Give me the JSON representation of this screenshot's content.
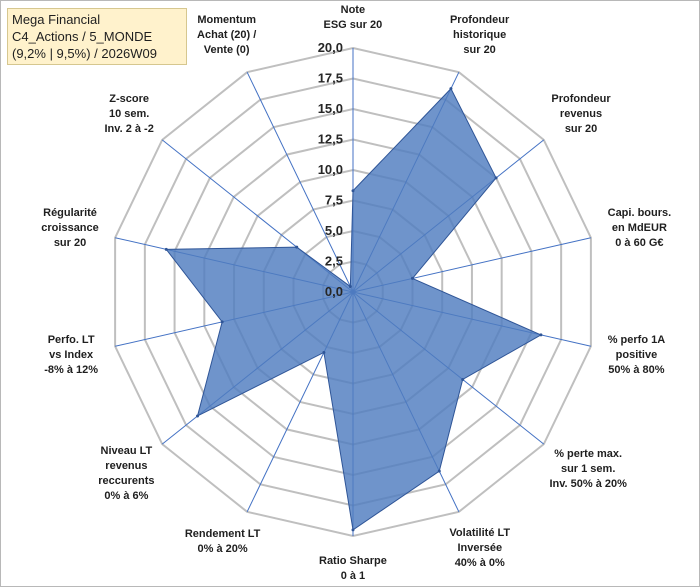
{
  "chart_data": {
    "type": "radar",
    "title_lines": [
      "Mega Financial",
      "C4_Actions / 5_MONDE",
      "(9,2% | 9,5%) / 2026W09"
    ],
    "rlim": [
      0,
      20
    ],
    "r_ticks": [
      "0,0",
      "2,5",
      "5,0",
      "7,5",
      "10,0",
      "12,5",
      "15,0",
      "17,5",
      "20,0"
    ],
    "grid": true,
    "axes": [
      {
        "lines": [
          "Note",
          "ESG sur 20"
        ],
        "value": 8.3
      },
      {
        "lines": [
          "Profondeur",
          "historique",
          "sur 20"
        ],
        "value": 18.5
      },
      {
        "lines": [
          "Profondeur",
          "revenus",
          "sur 20"
        ],
        "value": 15.0
      },
      {
        "lines": [
          "Capi. bours.",
          "en MdEUR",
          "0 à 60 G€"
        ],
        "value": 5.0
      },
      {
        "lines": [
          "% perfo 1A",
          "positive",
          "50% à 80%"
        ],
        "value": 15.8
      },
      {
        "lines": [
          "% perte max.",
          "sur 1 sem.",
          "Inv. 50% à 20%"
        ],
        "value": 11.5
      },
      {
        "lines": [
          "Volatilité LT",
          "Inversée",
          "40% à 0%"
        ],
        "value": 16.3
      },
      {
        "lines": [
          "Ratio Sharpe",
          "0 à 1"
        ],
        "value": 19.5
      },
      {
        "lines": [
          "Rendement LT",
          "0% à 20%"
        ],
        "value": 5.5
      },
      {
        "lines": [
          "Niveau LT",
          "revenus",
          "reccurents",
          "0% à 6%"
        ],
        "value": 16.3
      },
      {
        "lines": [
          "Perfo. LT",
          "vs Index",
          "-8% à 12%"
        ],
        "value": 11.0
      },
      {
        "lines": [
          "Régularité",
          "croissance",
          "sur 20"
        ],
        "value": 15.7
      },
      {
        "lines": [
          "Z-score",
          "10 sem.",
          "Inv. 2 à -2"
        ],
        "value": 5.9
      },
      {
        "lines": [
          "Momentum",
          "Achat (20) /",
          "Vente (0)"
        ],
        "value": 0.5
      }
    ],
    "colors": {
      "fill": "#4f7cc0",
      "stroke": "#2f5597",
      "grid": "#bfbfbf",
      "spoke": "#4472c4"
    }
  }
}
